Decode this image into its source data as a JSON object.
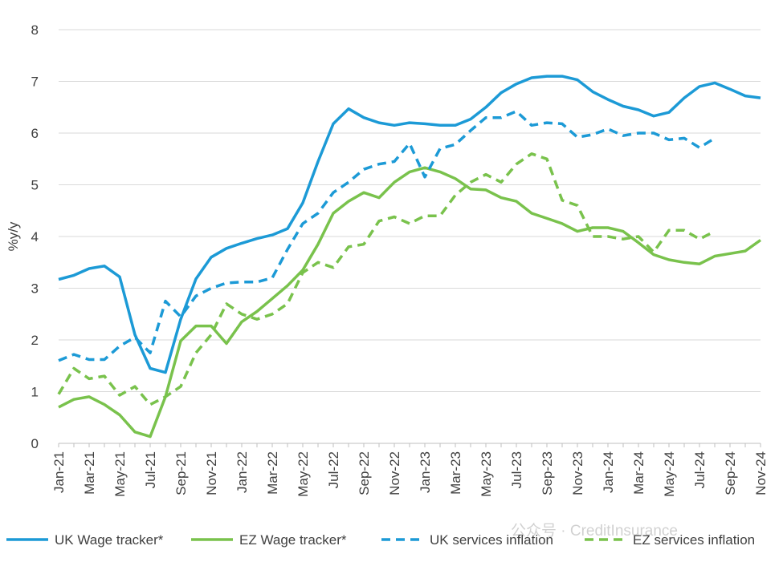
{
  "chart_data": {
    "type": "line",
    "y_label": "%y/y",
    "watermark": "公众号 · CreditInsurance",
    "categories": [
      "Jan-21",
      null,
      "Mar-21",
      null,
      "May-21",
      null,
      "Jul-21",
      null,
      "Sep-21",
      null,
      "Nov-21",
      null,
      "Jan-22",
      null,
      "Mar-22",
      null,
      "May-22",
      null,
      "Jul-22",
      null,
      "Sep-22",
      null,
      "Nov-22",
      null,
      "Jan-23",
      null,
      "Mar-23",
      null,
      "May-23",
      null,
      "Jul-23",
      null,
      "Sep-23",
      null,
      "Nov-23",
      null,
      "Jan-24",
      null,
      "Mar-24",
      null,
      "May-24",
      null,
      "Jul-24",
      null,
      "Sep-24",
      null,
      "Nov-24"
    ],
    "series": [
      {
        "name": "UK Wage tracker*",
        "color": "#1c9ad6",
        "dashed": false,
        "values": [
          3.17,
          3.25,
          3.38,
          3.43,
          3.22,
          2.1,
          1.45,
          1.37,
          2.4,
          3.18,
          3.6,
          3.77,
          3.87,
          3.96,
          4.03,
          4.15,
          4.65,
          5.45,
          6.18,
          6.47,
          6.3,
          6.2,
          6.15,
          6.2,
          6.18,
          6.15,
          6.15,
          6.27,
          6.5,
          6.78,
          6.95,
          7.07,
          7.1,
          7.1,
          7.03,
          6.8,
          6.65,
          6.52,
          6.45,
          6.33,
          6.4,
          6.68,
          6.9,
          6.97,
          6.85,
          6.72,
          6.68
        ]
      },
      {
        "name": "EZ Wage tracker*",
        "color": "#79c24c",
        "dashed": false,
        "values": [
          0.7,
          0.85,
          0.9,
          0.75,
          0.55,
          0.22,
          0.13,
          0.9,
          1.98,
          2.27,
          2.27,
          1.93,
          2.35,
          2.55,
          2.8,
          3.05,
          3.35,
          3.85,
          4.45,
          4.68,
          4.85,
          4.75,
          5.05,
          5.25,
          5.33,
          5.25,
          5.12,
          4.92,
          4.9,
          4.75,
          4.68,
          4.45,
          4.35,
          4.25,
          4.1,
          4.17,
          4.17,
          4.1,
          3.88,
          3.65,
          3.55,
          3.5,
          3.47,
          3.62,
          3.67,
          3.72,
          3.93
        ]
      },
      {
        "name": "UK services inflation",
        "color": "#1c9ad6",
        "dashed": true,
        "values": [
          1.6,
          1.72,
          1.62,
          1.62,
          1.88,
          2.05,
          1.75,
          2.75,
          2.45,
          2.85,
          3.0,
          3.1,
          3.12,
          3.12,
          3.2,
          3.75,
          4.25,
          4.45,
          4.85,
          5.05,
          5.3,
          5.4,
          5.45,
          5.8,
          5.15,
          5.7,
          5.78,
          6.05,
          6.3,
          6.3,
          6.42,
          6.15,
          6.2,
          6.18,
          5.92,
          5.97,
          6.08,
          5.95,
          6.0,
          6.0,
          5.87,
          5.9,
          5.72,
          5.9,
          null,
          null,
          null
        ]
      },
      {
        "name": "EZ services inflation",
        "color": "#79c24c",
        "dashed": true,
        "values": [
          0.95,
          1.45,
          1.25,
          1.3,
          0.93,
          1.1,
          0.75,
          0.9,
          1.1,
          1.75,
          2.1,
          2.7,
          2.5,
          2.4,
          2.5,
          2.7,
          3.3,
          3.5,
          3.4,
          3.8,
          3.85,
          4.3,
          4.38,
          4.25,
          4.4,
          4.4,
          4.8,
          5.05,
          5.2,
          5.05,
          5.4,
          5.6,
          5.5,
          4.7,
          4.6,
          4.0,
          4.0,
          3.95,
          4.0,
          3.7,
          4.12,
          4.12,
          3.95,
          4.1,
          null,
          null,
          null
        ]
      }
    ],
    "ylim": [
      0,
      8
    ],
    "yticks": [
      0,
      1,
      2,
      3,
      4,
      5,
      6,
      7,
      8
    ],
    "grid": true
  }
}
